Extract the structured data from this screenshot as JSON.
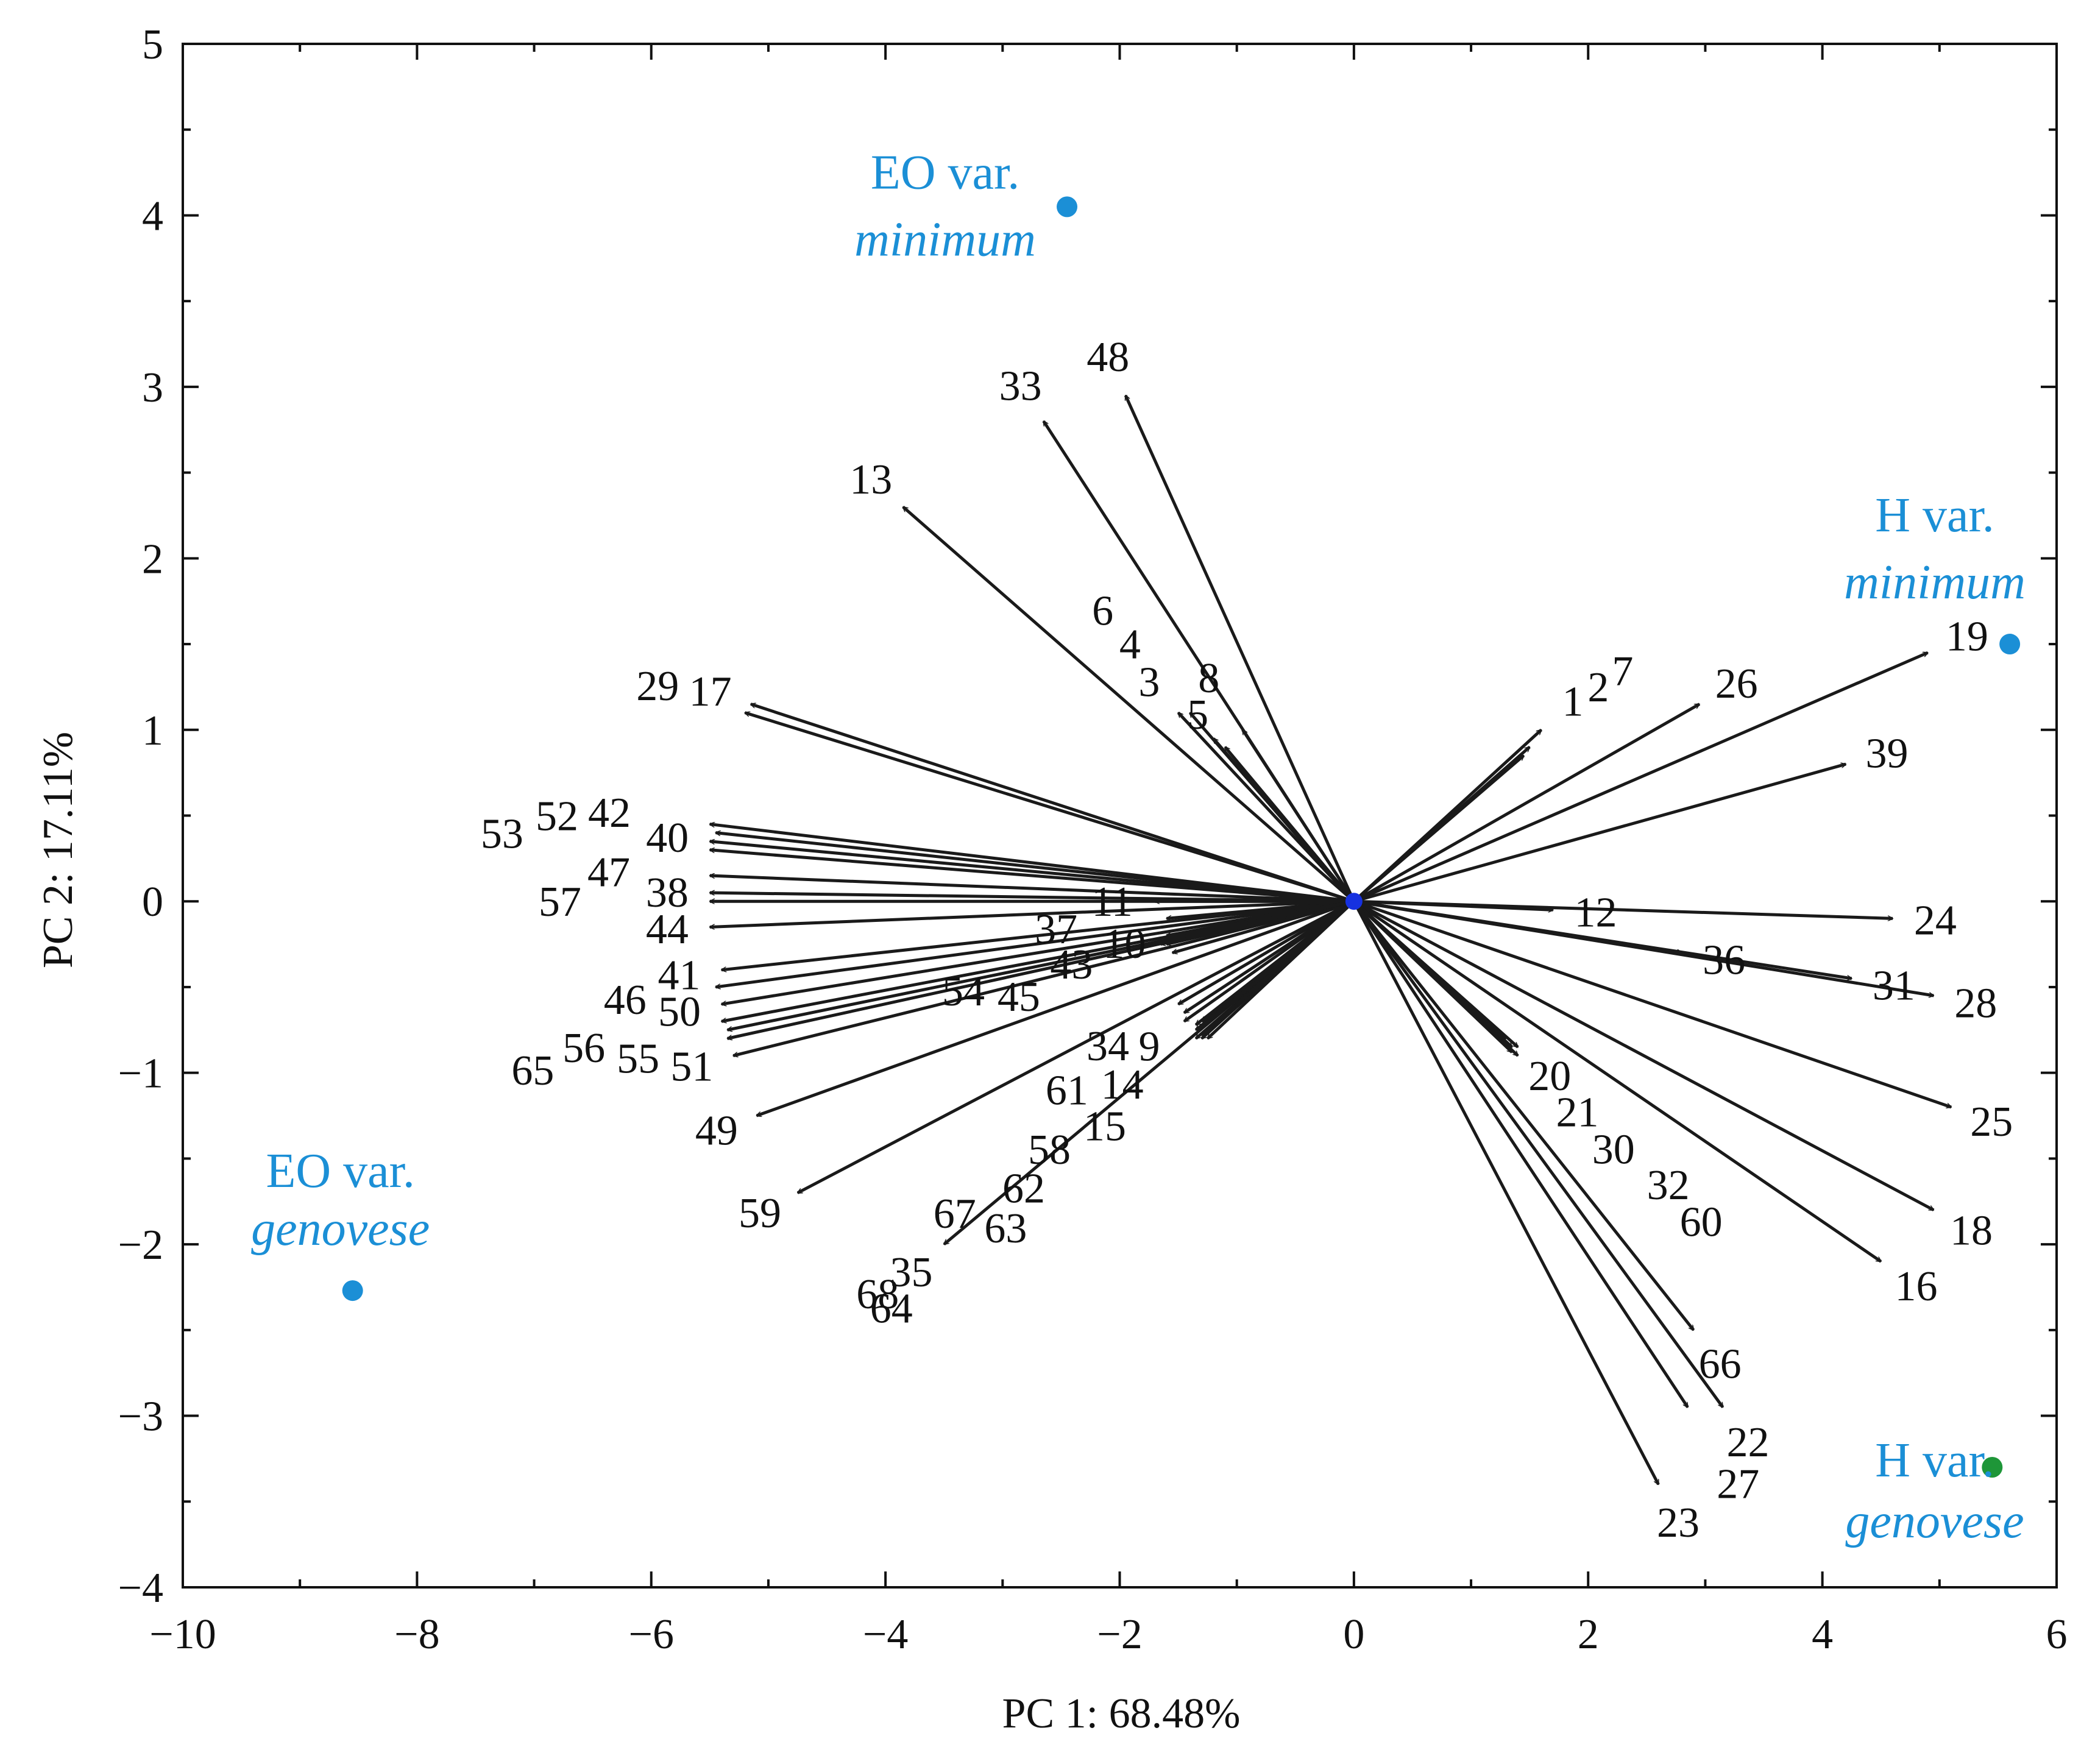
{
  "colors": {
    "group_blue": "#1b8fd6",
    "group_green": "#1e9638",
    "origin_blue": "#1631e0",
    "ink": "#1a1a1a"
  },
  "chart_data": {
    "type": "biplot",
    "xlabel": "PC 1: 68.48%",
    "ylabel": "PC 2: 17.11%",
    "xlim": [
      -10,
      6
    ],
    "ylim": [
      -4,
      5
    ],
    "xticks": [
      -10,
      -8,
      -6,
      -4,
      -2,
      0,
      2,
      4,
      6
    ],
    "yticks": [
      -4,
      -3,
      -2,
      -1,
      0,
      1,
      2,
      3,
      4,
      5
    ],
    "xtick_labels": [
      "−10",
      "−8",
      "−6",
      "−4",
      "−2",
      "0",
      "2",
      "4",
      "6"
    ],
    "ytick_labels": [
      "−4",
      "−3",
      "−2",
      "−1",
      "0",
      "1",
      "2",
      "3",
      "4",
      "5"
    ],
    "groups": [
      {
        "name": "EO var.",
        "variety": "minimum",
        "x": -2.45,
        "y": 4.05,
        "color": "#1b8fd6"
      },
      {
        "name": "H var.",
        "variety": "minimum",
        "x": 5.6,
        "y": 1.5,
        "color": "#1b8fd6"
      },
      {
        "name": "EO var.",
        "variety": "genovese",
        "x": -8.55,
        "y": -2.27,
        "color": "#1b8fd6"
      },
      {
        "name": "H var.",
        "variety": "genovese",
        "x": 5.45,
        "y": -3.3,
        "color": "#1e9638"
      }
    ],
    "loadings": [
      {
        "x": 1.6,
        "y": 1.0,
        "label": "1"
      },
      {
        "x": 1.5,
        "y": 0.9,
        "label": "2"
      },
      {
        "x": -1.5,
        "y": 1.1,
        "label": "3"
      },
      {
        "x": -1.4,
        "y": 1.1,
        "label": "4"
      },
      {
        "x": -1.1,
        "y": 0.9,
        "label": "5"
      },
      {
        "x": -1.2,
        "y": 0.95,
        "label": "6"
      },
      {
        "x": 1.45,
        "y": 0.85,
        "label": "7"
      },
      {
        "x": -0.95,
        "y": 1.0,
        "label": "8"
      },
      {
        "x": -1.45,
        "y": -0.7,
        "label": "9"
      },
      {
        "x": -1.6,
        "y": -0.2,
        "label": "10"
      },
      {
        "x": -1.7,
        "y": 0.0,
        "label": "11"
      },
      {
        "x": 1.7,
        "y": -0.05,
        "label": "12"
      },
      {
        "x": -3.85,
        "y": 2.3,
        "label": "13"
      },
      {
        "x": -1.3,
        "y": -0.7,
        "label": "14"
      },
      {
        "x": -1.3,
        "y": -0.8,
        "label": "15"
      },
      {
        "x": 4.5,
        "y": -2.1,
        "label": "16"
      },
      {
        "x": -5.15,
        "y": 1.15,
        "label": "17"
      },
      {
        "x": 4.95,
        "y": -1.8,
        "label": "18"
      },
      {
        "x": 4.9,
        "y": 1.45,
        "label": "19"
      },
      {
        "x": 1.4,
        "y": -0.85,
        "label": "20"
      },
      {
        "x": 1.4,
        "y": -0.9,
        "label": "21"
      },
      {
        "x": 3.15,
        "y": -2.95,
        "label": "22"
      },
      {
        "x": 2.6,
        "y": -3.4,
        "label": "23"
      },
      {
        "x": 4.6,
        "y": -0.1,
        "label": "24"
      },
      {
        "x": 5.1,
        "y": -1.2,
        "label": "25"
      },
      {
        "x": 2.95,
        "y": 1.15,
        "label": "26"
      },
      {
        "x": 2.85,
        "y": -2.95,
        "label": "27"
      },
      {
        "x": 4.95,
        "y": -0.55,
        "label": "28"
      },
      {
        "x": -5.2,
        "y": 1.1,
        "label": "29"
      },
      {
        "x": 1.35,
        "y": -0.88,
        "label": "30"
      },
      {
        "x": 4.25,
        "y": -0.45,
        "label": "31"
      },
      {
        "x": 1.3,
        "y": -0.8,
        "label": "32"
      },
      {
        "x": -2.65,
        "y": 2.8,
        "label": "33"
      },
      {
        "x": -1.5,
        "y": -0.6,
        "label": "34"
      },
      {
        "x": -3.5,
        "y": -2.0,
        "label": "35"
      },
      {
        "x": 2.8,
        "y": -0.3,
        "label": "36"
      },
      {
        "x": -1.6,
        "y": -0.1,
        "label": "37"
      },
      {
        "x": -5.5,
        "y": 0.05,
        "label": "38"
      },
      {
        "x": 4.2,
        "y": 0.8,
        "label": "39"
      },
      {
        "x": -5.5,
        "y": 0.35,
        "label": "40"
      },
      {
        "x": -5.4,
        "y": -0.4,
        "label": "41"
      },
      {
        "x": -5.5,
        "y": 0.45,
        "label": "42"
      },
      {
        "x": -1.65,
        "y": -0.25,
        "label": "43"
      },
      {
        "x": -5.5,
        "y": -0.15,
        "label": "44"
      },
      {
        "x": -1.55,
        "y": -0.3,
        "label": "45"
      },
      {
        "x": -5.45,
        "y": -0.5,
        "label": "46"
      },
      {
        "x": -5.5,
        "y": 0.15,
        "label": "47"
      },
      {
        "x": -1.95,
        "y": 2.95,
        "label": "48"
      },
      {
        "x": -5.1,
        "y": -1.25,
        "label": "49"
      },
      {
        "x": -5.4,
        "y": -0.6,
        "label": "50"
      },
      {
        "x": -5.3,
        "y": -0.9,
        "label": "51"
      },
      {
        "x": -5.45,
        "y": 0.4,
        "label": "52"
      },
      {
        "x": -5.5,
        "y": 0.3,
        "label": "53"
      },
      {
        "x": -1.6,
        "y": -0.25,
        "label": "54"
      },
      {
        "x": -5.35,
        "y": -0.8,
        "label": "55"
      },
      {
        "x": -5.4,
        "y": -0.7,
        "label": "56"
      },
      {
        "x": -5.5,
        "y": 0.0,
        "label": "57"
      },
      {
        "x": -1.35,
        "y": -0.75,
        "label": "58"
      },
      {
        "x": -4.75,
        "y": -1.7,
        "label": "59"
      },
      {
        "x": 1.35,
        "y": -0.85,
        "label": "60"
      },
      {
        "x": -1.45,
        "y": -0.65,
        "label": "61"
      },
      {
        "x": -1.35,
        "y": -0.8,
        "label": "62"
      },
      {
        "x": -1.25,
        "y": -0.8,
        "label": "63"
      },
      {
        "x": -1.3,
        "y": -0.78,
        "label": "64"
      },
      {
        "x": -5.35,
        "y": -0.75,
        "label": "65"
      },
      {
        "x": 2.9,
        "y": -2.5,
        "label": "66"
      },
      {
        "x": -1.35,
        "y": -0.72,
        "label": "67"
      },
      {
        "x": -1.28,
        "y": -0.72,
        "label": "68"
      }
    ]
  }
}
